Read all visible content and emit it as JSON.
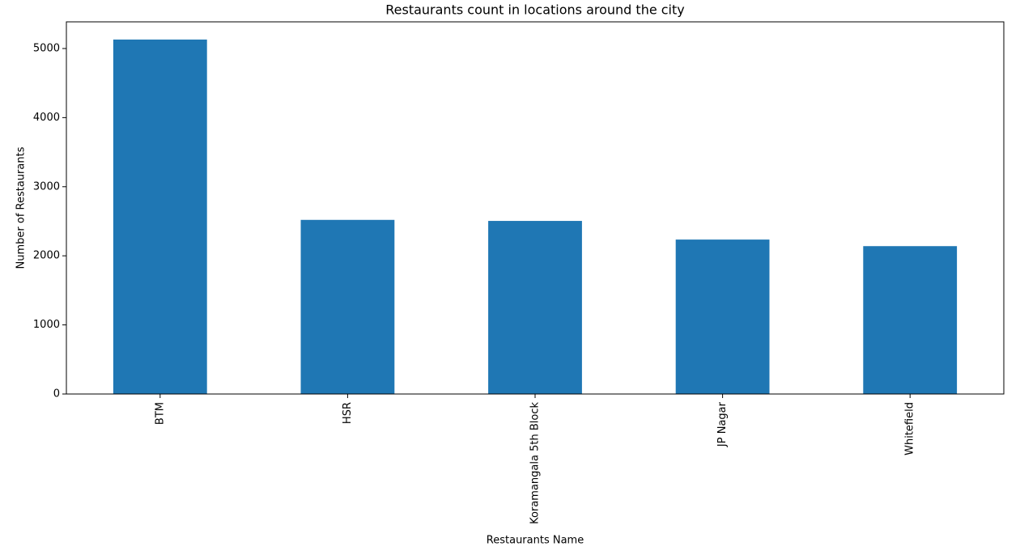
{
  "chart_data": {
    "type": "bar",
    "title": "Restaurants count in locations around the city",
    "x_label": "Restaurants Name",
    "y_label": "Number of Restaurants",
    "categories": [
      "BTM",
      "HSR",
      "Koramangala 5th Block",
      "JP Nagar",
      "Whitefield"
    ],
    "values": [
      5130,
      2520,
      2505,
      2235,
      2140
    ],
    "color": "#1f77b4",
    "ylim": [
      0,
      5386
    ],
    "yticks": [
      0,
      1000,
      2000,
      3000,
      4000,
      5000
    ],
    "grid": false
  }
}
